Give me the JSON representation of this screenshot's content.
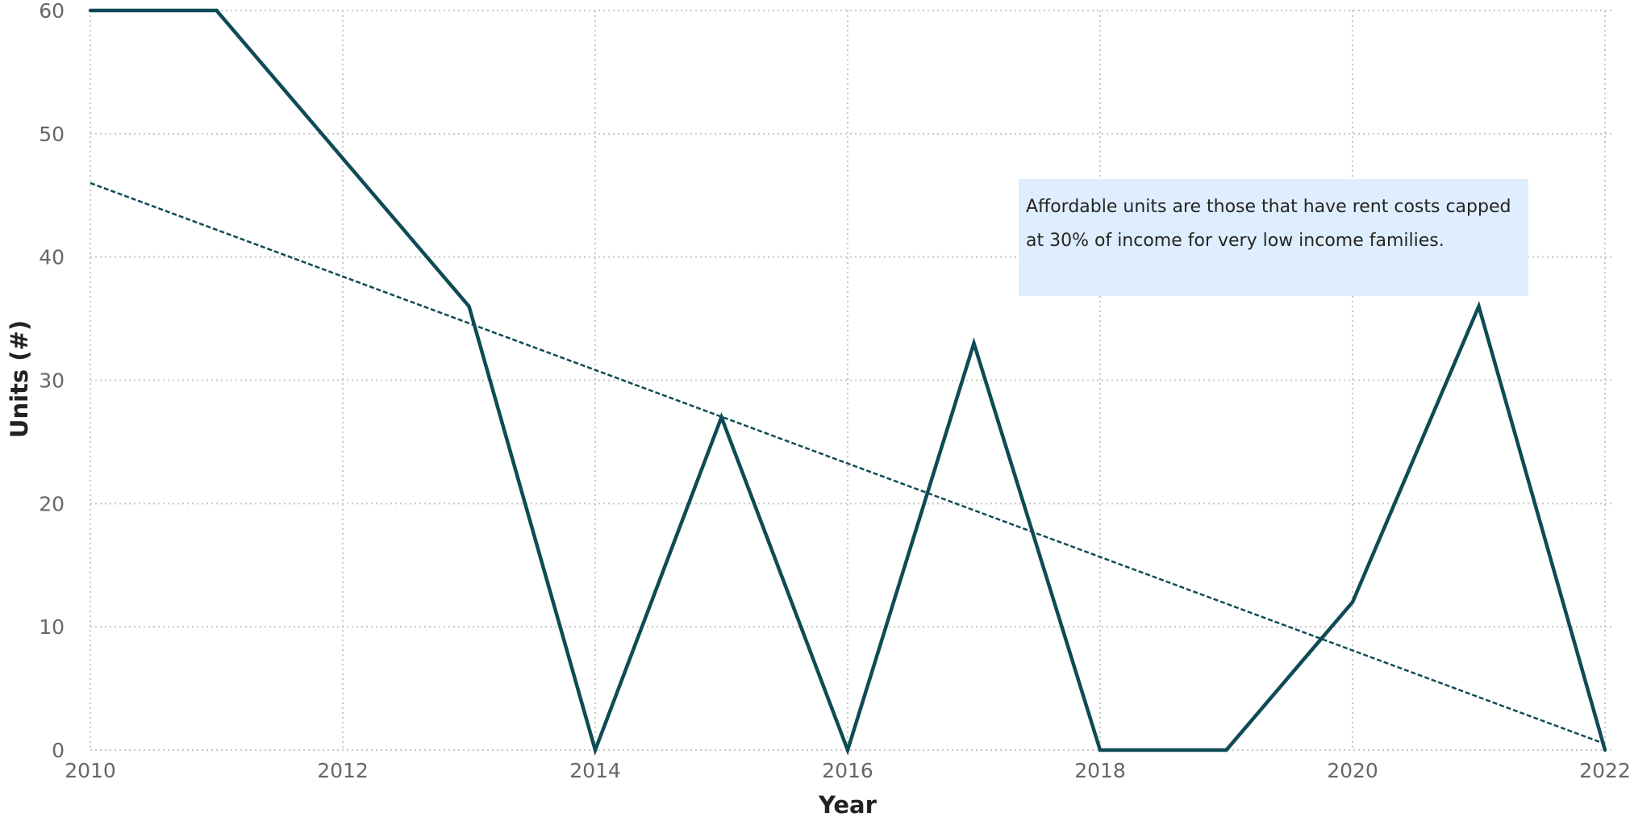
{
  "chart_data": {
    "type": "line",
    "title": "",
    "xlabel": "Year",
    "ylabel": "Units (#)",
    "x": [
      2010,
      2011,
      2012,
      2013,
      2014,
      2015,
      2016,
      2017,
      2018,
      2019,
      2020,
      2021,
      2022
    ],
    "series": [
      {
        "values": [
          60,
          60,
          48,
          36,
          0,
          27,
          0,
          33,
          0,
          0,
          12,
          36,
          0
        ],
        "color": "#0f4b55"
      }
    ],
    "trendline": {
      "start": [
        2010,
        46
      ],
      "end": [
        2022,
        0.5
      ],
      "style": "dashed",
      "color": "#0f4b55"
    },
    "xlim": [
      2010,
      2022
    ],
    "ylim": [
      0,
      60
    ],
    "xticks": [
      "2010",
      "2012",
      "2014",
      "2016",
      "2018",
      "2020",
      "2022"
    ],
    "yticks": [
      "0",
      "10",
      "20",
      "30",
      "40",
      "50",
      "60"
    ],
    "grid": true,
    "annotations": [
      {
        "text": "Affordable units are those that have rent costs capped at 30% of income for very low income families.",
        "background": "#deeeff"
      }
    ]
  }
}
